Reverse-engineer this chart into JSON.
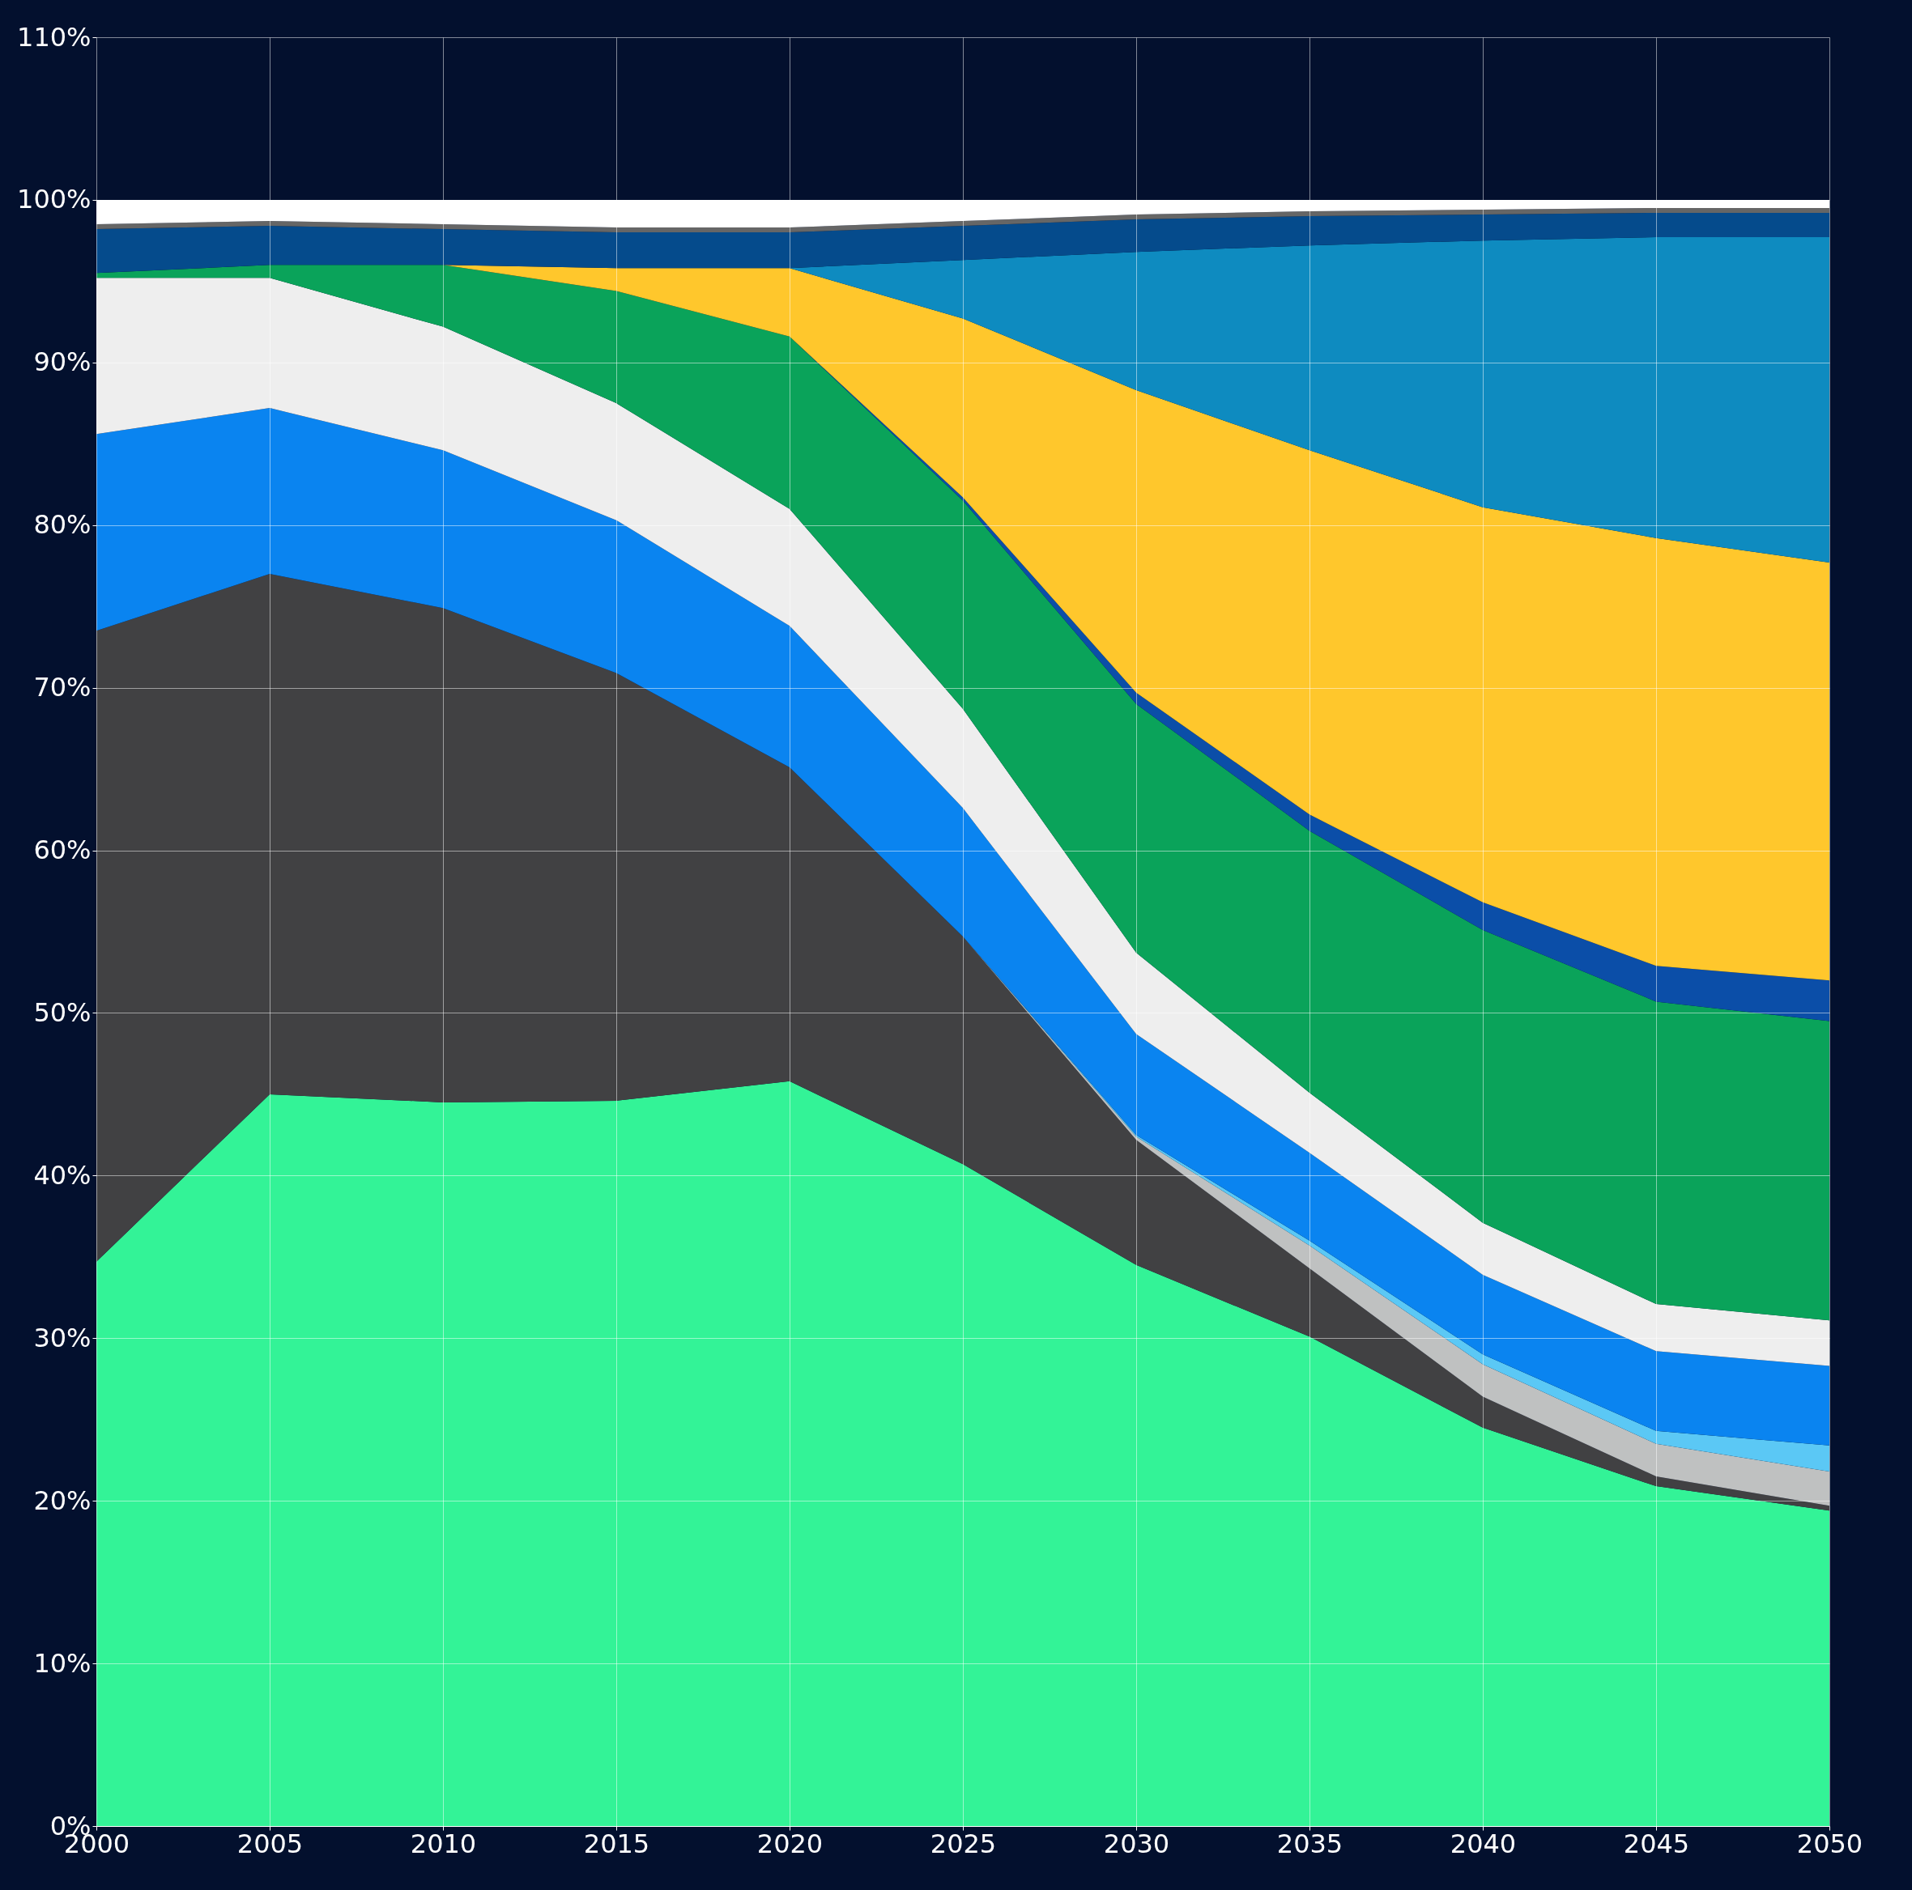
{
  "chart_data": {
    "type": "area",
    "stacked": true,
    "x": [
      2000,
      2005,
      2010,
      2015,
      2020,
      2025,
      2030,
      2035,
      2040,
      2045,
      2050
    ],
    "series": [
      {
        "color": "#33f397",
        "values": [
          34.7,
          45.0,
          44.5,
          44.6,
          45.8,
          40.7,
          34.5,
          30.1,
          24.5,
          20.9,
          19.4
        ]
      },
      {
        "color": "#414143",
        "values": [
          38.8,
          32.0,
          30.4,
          26.3,
          19.3,
          14.0,
          7.7,
          4.2,
          1.9,
          0.6,
          0.3
        ]
      },
      {
        "color": "#bfc1c1",
        "values": [
          0,
          0,
          0,
          0,
          0,
          0,
          0.2,
          1.4,
          2.0,
          2.0,
          2.1
        ]
      },
      {
        "color": "#5bc8f5",
        "values": [
          0,
          0,
          0,
          0,
          0,
          0,
          0.1,
          0.3,
          0.6,
          0.8,
          1.6
        ]
      },
      {
        "color": "#0a84f0",
        "values": [
          12.1,
          10.2,
          9.7,
          9.4,
          8.7,
          7.9,
          6.2,
          5.4,
          4.9,
          4.9,
          4.9
        ]
      },
      {
        "color": "#eeeeee",
        "values": [
          9.6,
          8.0,
          7.6,
          7.2,
          7.2,
          6.1,
          5.0,
          3.7,
          3.2,
          2.9,
          2.8
        ]
      },
      {
        "color": "#0aa35a",
        "values": [
          0.3,
          0.8,
          3.8,
          6.9,
          10.6,
          12.8,
          15.3,
          16.1,
          18.0,
          18.6,
          18.4
        ]
      },
      {
        "color": "#0b4ea8",
        "values": [
          0,
          0,
          0,
          0,
          0,
          0.2,
          0.7,
          1.0,
          1.7,
          2.2,
          2.5
        ]
      },
      {
        "color": "#ffc72c",
        "values": [
          0,
          0,
          0,
          1.4,
          4.2,
          11.0,
          18.6,
          22.4,
          24.3,
          26.3,
          25.7
        ]
      },
      {
        "color": "#0e8bc0",
        "values": [
          0,
          0,
          0,
          0,
          0,
          3.6,
          8.5,
          12.6,
          16.4,
          18.5,
          20.0
        ]
      },
      {
        "color": "#054b8c",
        "values": [
          2.7,
          2.4,
          2.2,
          2.2,
          2.2,
          2.1,
          2.0,
          1.8,
          1.6,
          1.5,
          1.5
        ]
      },
      {
        "color": "#666666",
        "values": [
          0.3,
          0.3,
          0.3,
          0.3,
          0.3,
          0.3,
          0.3,
          0.3,
          0.3,
          0.3,
          0.3
        ]
      },
      {
        "color": "#ffffff",
        "values": [
          1.5,
          1.3,
          1.5,
          1.7,
          1.7,
          1.3,
          0.9,
          0.7,
          0.6,
          0.5,
          0.5
        ]
      }
    ],
    "xlim": [
      2000,
      2050
    ],
    "xticks": [
      2000,
      2005,
      2010,
      2015,
      2020,
      2025,
      2030,
      2035,
      2040,
      2045,
      2050
    ],
    "ylim": [
      0,
      110
    ],
    "yticks": [
      {
        "value": 0,
        "label": "0%"
      },
      {
        "value": 10,
        "label": "10%"
      },
      {
        "value": 20,
        "label": "20%"
      },
      {
        "value": 30,
        "label": "30%"
      },
      {
        "value": 40,
        "label": "40%"
      },
      {
        "value": 50,
        "label": "50%"
      },
      {
        "value": 60,
        "label": "60%"
      },
      {
        "value": 70,
        "label": "70%"
      },
      {
        "value": 80,
        "label": "80%"
      },
      {
        "value": 90,
        "label": "90%"
      },
      {
        "value": 100,
        "label": "100%"
      },
      {
        "value": 110,
        "label": "110%"
      }
    ],
    "grid": true
  }
}
